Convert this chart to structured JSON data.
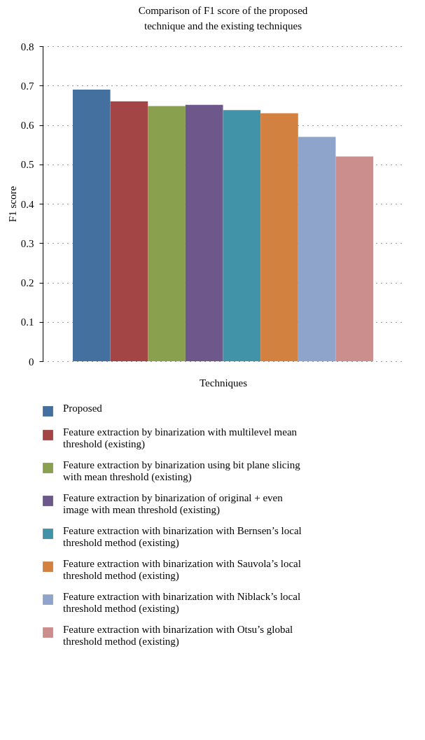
{
  "chart_data": {
    "type": "bar",
    "title": "Comparison of F1 score of the proposed technique and the existing techniques",
    "xlabel": "Techniques",
    "ylabel": "F1 score",
    "categories": [
      null
    ],
    "series": [
      {
        "name": "Proposed",
        "color": "#4470a0",
        "values": [
          0.69
        ]
      },
      {
        "name": "Feature extraction by binarization with multilevel mean threshold (existing)",
        "color": "#a34544",
        "values": [
          0.66
        ]
      },
      {
        "name": "Feature extraction by binarization using bit plane slicing with mean threshold (existing)",
        "color": "#89a04e",
        "values": [
          0.648
        ]
      },
      {
        "name": "Feature extraction by binarization of original + even image with mean threshold (existing)",
        "color": "#6d578b",
        "values": [
          0.651
        ]
      },
      {
        "name": "Feature extraction with binarization with Bernsen’s local threshold method (existing)",
        "color": "#4193a8",
        "values": [
          0.638
        ]
      },
      {
        "name": "Feature extraction with binarization with Sauvola’s local threshold method (existing)",
        "color": "#d38140",
        "values": [
          0.63
        ]
      },
      {
        "name": "Feature extraction with binarization with Niblack’s local threshold method (existing)",
        "color": "#8fa4ca",
        "values": [
          0.57
        ]
      },
      {
        "name": "Feature extraction with binarization with Otsu’s global threshold method (existing)",
        "color": "#cc8d8d",
        "values": [
          0.52
        ]
      }
    ],
    "ylim": [
      0,
      0.8
    ],
    "yticks": [
      0,
      0.1,
      0.2,
      0.3,
      0.4,
      0.5,
      0.6,
      0.7,
      0.8
    ],
    "grid": "y",
    "legend": "bottom"
  }
}
